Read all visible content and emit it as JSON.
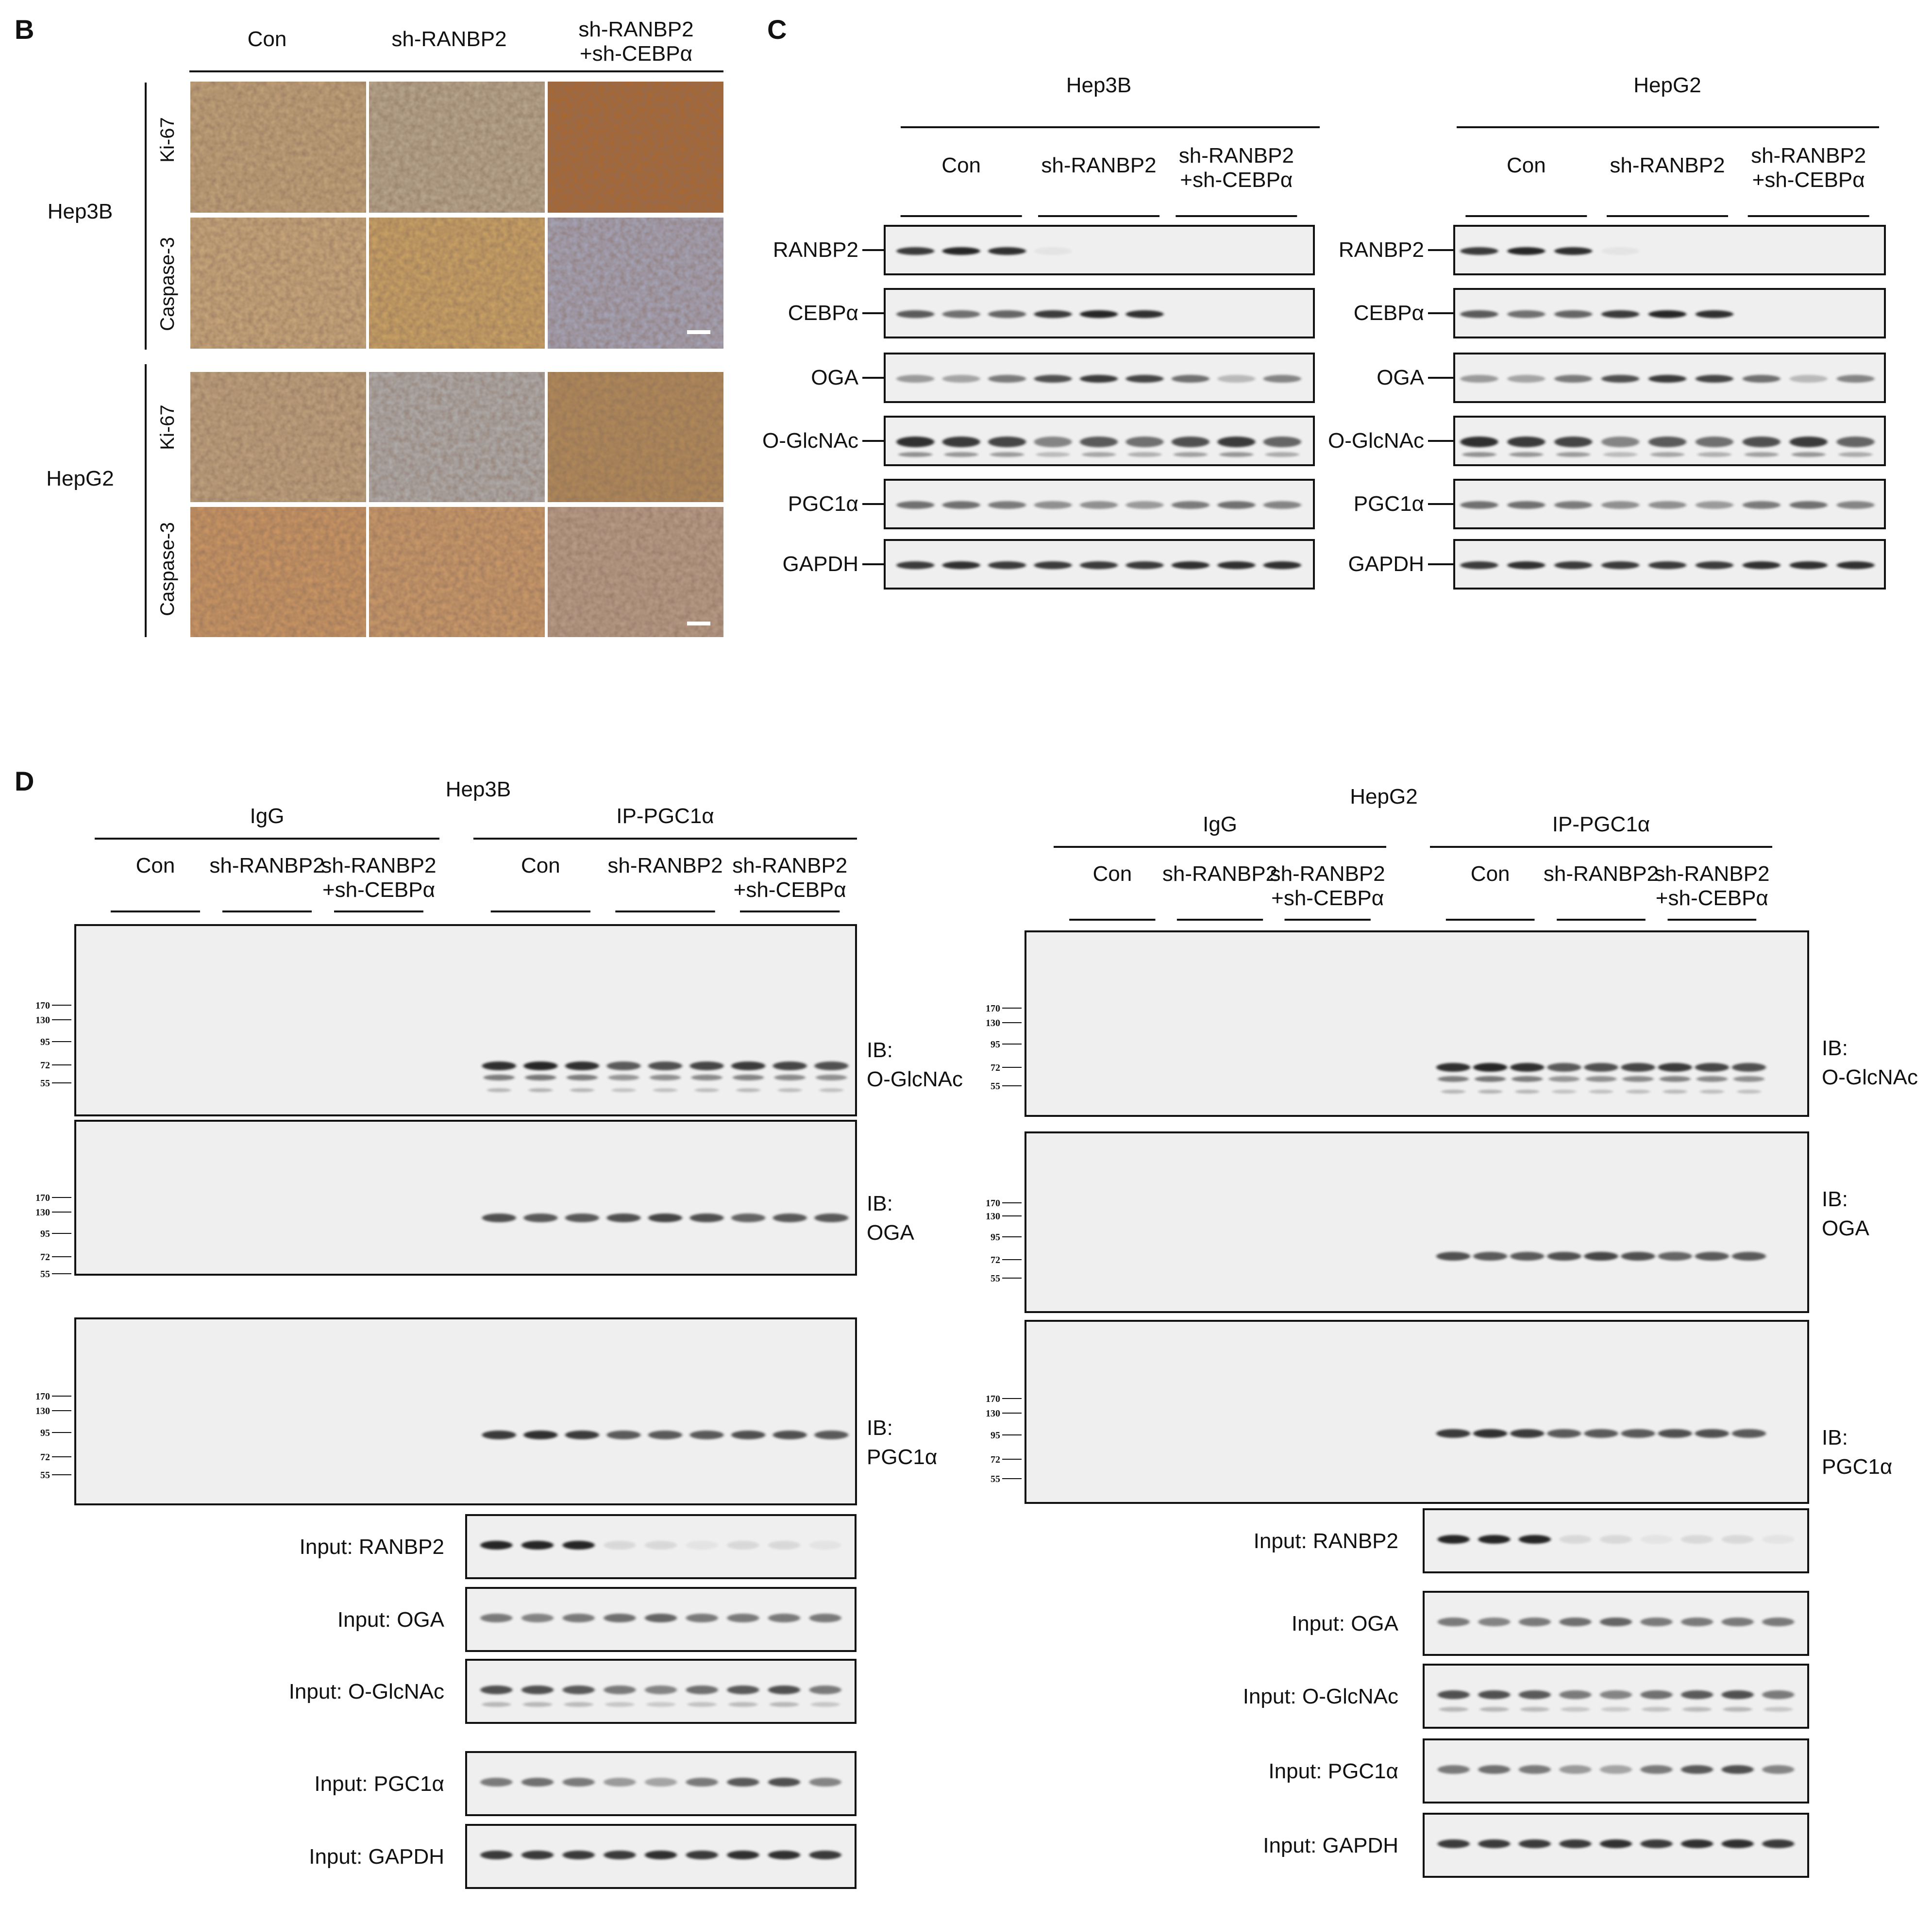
{
  "panel_b": {
    "label": "B",
    "columns": [
      "Con",
      "sh-RANBP2",
      "sh-RANBP2",
      "+sh-CEBPα"
    ],
    "cell_lines": [
      "Hep3B",
      "HepG2"
    ],
    "stains": [
      "Ki-67",
      "Caspase-3"
    ]
  },
  "panel_c": {
    "label": "C",
    "blots": [
      {
        "cell_line": "Hep3B",
        "groups": [
          "Con",
          "sh-RANBP2",
          "sh-RANBP2",
          "+sh-CEBPα"
        ],
        "rows": [
          "RANBP2",
          "CEBPα",
          "OGA",
          "O-GlcNAc",
          "PGC1α",
          "GAPDH"
        ]
      },
      {
        "cell_line": "HepG2",
        "groups": [
          "Con",
          "sh-RANBP2",
          "sh-RANBP2",
          "+sh-CEBPα"
        ],
        "rows": [
          "RANBP2",
          "CEBPα",
          "OGA",
          "O-GlcNAc",
          "PGC1α",
          "GAPDH"
        ]
      }
    ]
  },
  "panel_d": {
    "label": "D",
    "blots": [
      {
        "cell_line": "Hep3B",
        "igg": "IgG",
        "ip": "IP-PGC1α",
        "groups": [
          "Con",
          "sh-RANBP2",
          "sh-RANBP2",
          "+sh-CEBPα"
        ],
        "ib_prefix": "IB:",
        "ib": [
          "O-GlcNAc",
          "OGA",
          "PGC1α"
        ],
        "markers": [
          "170",
          "130",
          "95",
          "72",
          "55"
        ],
        "inputs": [
          "Input: RANBP2",
          "Input: OGA",
          "Input: O-GlcNAc",
          "Input: PGC1α",
          "Input: GAPDH"
        ]
      },
      {
        "cell_line": "HepG2",
        "igg": "IgG",
        "ip": "IP-PGC1α",
        "groups": [
          "Con",
          "sh-RANBP2",
          "sh-RANBP2",
          "+sh-CEBPα"
        ],
        "ib_prefix": "IB:",
        "ib": [
          "O-GlcNAc",
          "OGA",
          "PGC1α"
        ],
        "markers": [
          "170",
          "130",
          "95",
          "72",
          "55"
        ],
        "inputs": [
          "Input: RANBP2",
          "Input: OGA",
          "Input: O-GlcNAc",
          "Input: PGC1α",
          "Input: GAPDH"
        ]
      }
    ]
  },
  "colors": {
    "ihc_brown": "#8a4a22",
    "ihc_blue": "#6a6a9a",
    "blot_bg": "#efefef",
    "band": "#1a1a1a"
  }
}
